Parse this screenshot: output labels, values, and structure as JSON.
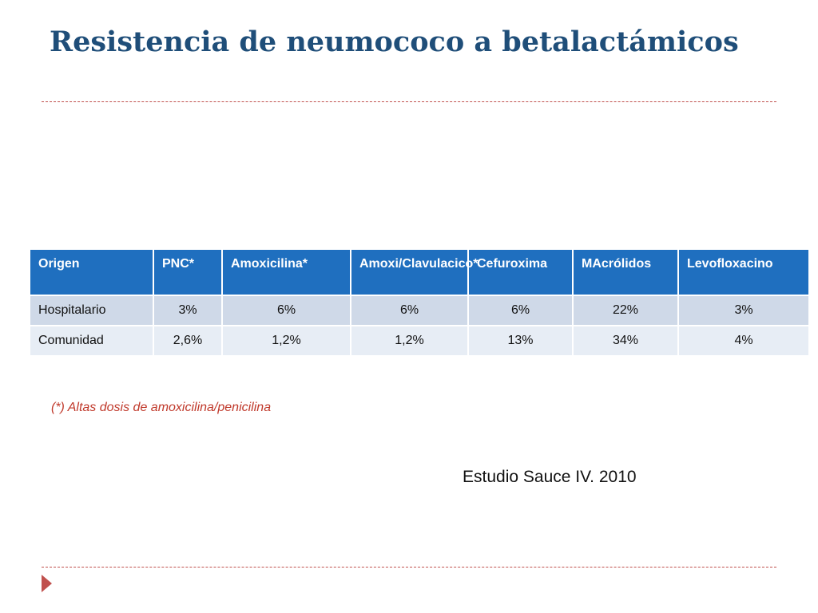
{
  "slide": {
    "title": "Resistencia de neumococo a betalactámicos",
    "footnote": "(*) Altas  dosis de amoxicilina/penicilina",
    "source": "Estudio Sauce IV. 2010"
  },
  "table": {
    "headers": [
      "Origen",
      "PNC*",
      "Amoxicilina*",
      "Amoxi/Clavulacico*",
      "Cefuroxima",
      "MAcrólidos",
      "Levofloxacino"
    ],
    "rows": [
      [
        "Hospitalario",
        "3%",
        "6%",
        "6%",
        "6%",
        "22%",
        "3%"
      ],
      [
        "Comunidad",
        "2,6%",
        "1,2%",
        "1,2%",
        "13%",
        "34%",
        "4%"
      ]
    ]
  },
  "colors": {
    "title": "#1f4e79",
    "header_bg": "#1f6fbf",
    "row_odd": "#cfd9e8",
    "row_even": "#e7edf5",
    "accent": "#c0504d"
  }
}
